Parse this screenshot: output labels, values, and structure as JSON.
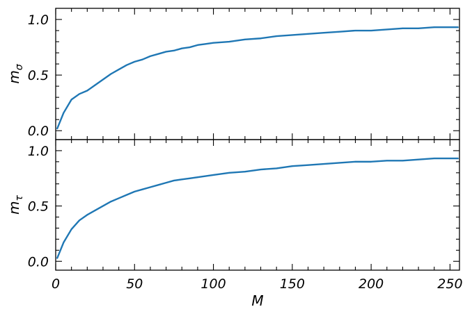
{
  "colors": {
    "series": "#1f77b4",
    "axis": "#000000",
    "background": "#ffffff"
  },
  "chart_data": [
    {
      "type": "line",
      "panel": "top",
      "ylabel": {
        "main": "m",
        "sub": "σ"
      },
      "xlabel": "",
      "xlim": [
        0,
        256
      ],
      "ylim": [
        -0.08,
        1.1
      ],
      "xticks": [
        0,
        50,
        100,
        150,
        200,
        250
      ],
      "xtick_labels": [
        "",
        "",
        "",
        "",
        "",
        ""
      ],
      "yticks": [
        0.0,
        0.5,
        1.0
      ],
      "ytick_labels": [
        "0.0",
        "0.5",
        "1.0"
      ],
      "grid": false,
      "series": [
        {
          "x": [
            1,
            5,
            10,
            15,
            20,
            25,
            30,
            35,
            40,
            45,
            50,
            55,
            60,
            65,
            70,
            75,
            80,
            85,
            90,
            95,
            100,
            110,
            120,
            130,
            140,
            150,
            160,
            170,
            180,
            190,
            200,
            210,
            220,
            230,
            240,
            250,
            255
          ],
          "values": [
            0.02,
            0.16,
            0.28,
            0.33,
            0.36,
            0.41,
            0.46,
            0.51,
            0.55,
            0.59,
            0.62,
            0.64,
            0.67,
            0.69,
            0.71,
            0.72,
            0.74,
            0.75,
            0.77,
            0.78,
            0.79,
            0.8,
            0.82,
            0.83,
            0.85,
            0.86,
            0.87,
            0.88,
            0.89,
            0.9,
            0.9,
            0.91,
            0.92,
            0.92,
            0.93,
            0.93,
            0.93
          ]
        }
      ]
    },
    {
      "type": "line",
      "panel": "bottom",
      "ylabel": {
        "main": "m",
        "sub": "τ"
      },
      "xlabel": "M",
      "xlim": [
        0,
        256
      ],
      "ylim": [
        -0.08,
        1.1
      ],
      "xticks": [
        0,
        50,
        100,
        150,
        200,
        250
      ],
      "xtick_labels": [
        "0",
        "50",
        "100",
        "150",
        "200",
        "250"
      ],
      "yticks": [
        0.0,
        0.5,
        1.0
      ],
      "ytick_labels": [
        "0.0",
        "0.5",
        "1.0"
      ],
      "grid": false,
      "series": [
        {
          "x": [
            1,
            5,
            10,
            15,
            20,
            25,
            30,
            35,
            40,
            45,
            50,
            55,
            60,
            65,
            70,
            75,
            80,
            85,
            90,
            95,
            100,
            110,
            120,
            130,
            140,
            150,
            160,
            170,
            180,
            190,
            200,
            210,
            220,
            230,
            240,
            250,
            255
          ],
          "values": [
            0.03,
            0.17,
            0.29,
            0.37,
            0.42,
            0.46,
            0.5,
            0.54,
            0.57,
            0.6,
            0.63,
            0.65,
            0.67,
            0.69,
            0.71,
            0.73,
            0.74,
            0.75,
            0.76,
            0.77,
            0.78,
            0.8,
            0.81,
            0.83,
            0.84,
            0.86,
            0.87,
            0.88,
            0.89,
            0.9,
            0.9,
            0.91,
            0.91,
            0.92,
            0.93,
            0.93,
            0.93
          ]
        }
      ]
    }
  ]
}
